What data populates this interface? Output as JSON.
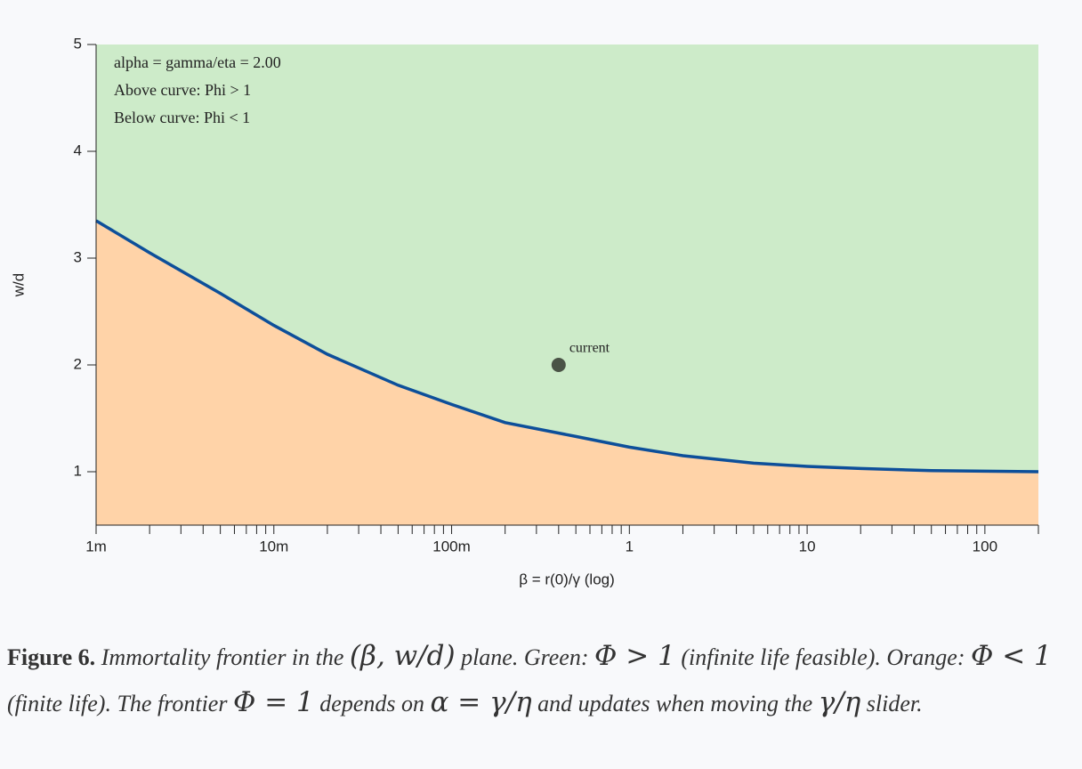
{
  "chart_data": {
    "type": "frontier",
    "x_label": "β = r(0)/γ (log)",
    "y_label": "w/d",
    "xscale": "log",
    "xlim": [
      0.001,
      200
    ],
    "ylim": [
      0.5,
      5
    ],
    "xticks": [
      {
        "value": 0.001,
        "label": "1m"
      },
      {
        "value": 0.01,
        "label": "10m"
      },
      {
        "value": 0.1,
        "label": "100m"
      },
      1,
      10,
      100
    ],
    "xminorticks": [
      0.002,
      0.003,
      0.004,
      0.005,
      0.006,
      0.007,
      0.008,
      0.009,
      0.02,
      0.03,
      0.04,
      0.05,
      0.06,
      0.07,
      0.08,
      0.09,
      0.2,
      0.3,
      0.4,
      0.5,
      0.6,
      0.7,
      0.8,
      0.9,
      2,
      3,
      4,
      5,
      6,
      7,
      8,
      9,
      20,
      30,
      40,
      50,
      60,
      70,
      80,
      90,
      200
    ],
    "yticks": [
      1,
      2,
      3,
      4,
      5
    ],
    "above_color": "#cdebc9",
    "below_color": "#ffd3a8",
    "series": [
      {
        "color": "#0d4f9a",
        "x": [
          0.001,
          0.002,
          0.005,
          0.01,
          0.02,
          0.05,
          0.1,
          0.2,
          0.5,
          1,
          2,
          5,
          10,
          20,
          50,
          100,
          200
        ],
        "values": [
          3.35,
          3.05,
          2.67,
          2.37,
          2.1,
          1.81,
          1.63,
          1.46,
          1.33,
          1.23,
          1.15,
          1.08,
          1.05,
          1.03,
          1.01,
          1.005,
          1.0
        ]
      }
    ],
    "point": {
      "label": "current",
      "x": 0.4,
      "y": 2,
      "color": "#4a5346"
    },
    "annotations": [
      {
        "text": "alpha = gamma/eta = 2.00",
        "color": "#2b8cc4"
      },
      {
        "text": "Above curve: Phi > 1",
        "color": "#2e8b3a"
      },
      {
        "text": "Below curve: Phi < 1",
        "color": "#c8480c"
      }
    ]
  },
  "caption": {
    "label": "Figure 6.",
    "parts": [
      "Immortality frontier in the ",
      "(β, w/d)",
      " plane. Green: ",
      "Φ > 1",
      " (infinite life feasible). Orange: ",
      "Φ < 1",
      " (finite life). The frontier ",
      "Φ = 1",
      " depends on ",
      "α = γ/η",
      " and updates when moving the ",
      "γ/η",
      " slider."
    ]
  }
}
